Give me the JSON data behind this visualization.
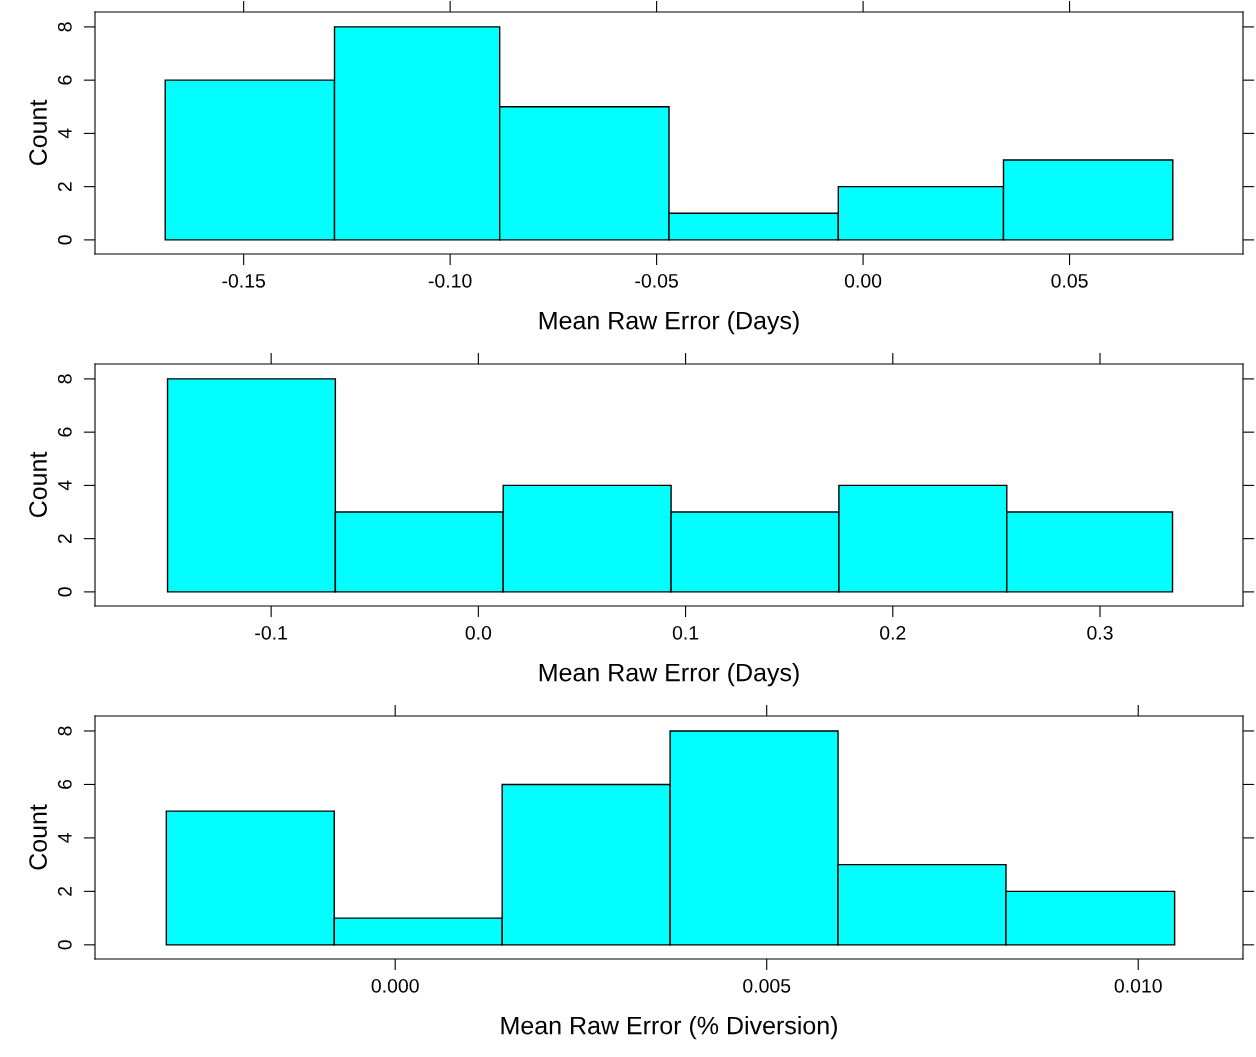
{
  "chart_data": [
    {
      "type": "histogram",
      "xlabel": "Mean Raw Error (Days)",
      "ylabel": "Count",
      "color": "#00ffff",
      "bins": [
        -0.169,
        -0.128,
        -0.088,
        -0.047,
        -0.006,
        0.034,
        0.075
      ],
      "values": [
        6,
        8,
        5,
        1,
        2,
        3
      ],
      "xlim": [
        -0.186,
        0.092
      ],
      "xticks": [
        {
          "value": -0.15,
          "label": "-0.15"
        },
        {
          "value": -0.1,
          "label": "-0.10"
        },
        {
          "value": -0.05,
          "label": "-0.05"
        },
        {
          "value": 0,
          "label": "0.00"
        },
        {
          "value": 0.05,
          "label": "0.05"
        }
      ],
      "ylim": [
        -0.53,
        8.56
      ],
      "yticks": [
        0,
        2,
        4,
        6,
        8
      ],
      "grid": false
    },
    {
      "type": "histogram",
      "xlabel": "Mean Raw Error (Days)",
      "ylabel": "Count",
      "color": "#00ffff",
      "bins": [
        -0.15,
        -0.069,
        0.012,
        0.093,
        0.174,
        0.255,
        0.335
      ],
      "values": [
        8,
        3,
        4,
        3,
        4,
        3
      ],
      "xlim": [
        -0.185,
        0.369
      ],
      "xticks": [
        {
          "value": -0.1,
          "label": "-0.1"
        },
        {
          "value": 0,
          "label": "0.0"
        },
        {
          "value": 0.1,
          "label": "0.1"
        },
        {
          "value": 0.2,
          "label": "0.2"
        },
        {
          "value": 0.3,
          "label": "0.3"
        }
      ],
      "ylim": [
        -0.53,
        8.56
      ],
      "yticks": [
        0,
        2,
        4,
        6,
        8
      ],
      "grid": false
    },
    {
      "type": "histogram",
      "xlabel": "Mean Raw Error (% Diversion)",
      "ylabel": "Count",
      "color": "#00ffff",
      "bins": [
        -0.00308,
        -0.00082,
        0.00144,
        0.0037,
        0.00596,
        0.00822,
        0.01049
      ],
      "values": [
        5,
        1,
        6,
        8,
        3,
        2
      ],
      "xlim": [
        -0.00404,
        0.01141
      ],
      "xticks": [
        {
          "value": 0,
          "label": "0.000"
        },
        {
          "value": 0.005,
          "label": "0.005"
        },
        {
          "value": 0.01,
          "label": "0.010"
        }
      ],
      "ylim": [
        -0.53,
        8.56
      ],
      "yticks": [
        0,
        2,
        4,
        6,
        8
      ],
      "grid": false
    }
  ]
}
